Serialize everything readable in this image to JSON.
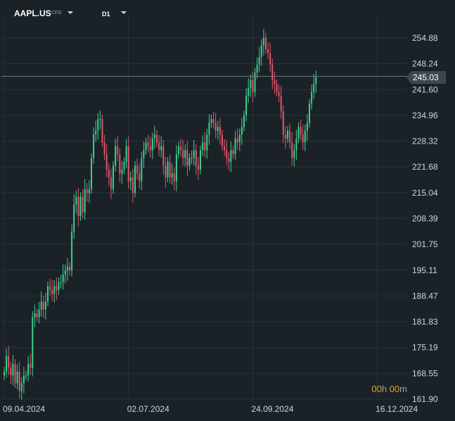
{
  "header": {
    "symbol": "AAPL.US",
    "instrument_type": "CFD",
    "timeframe": "D1"
  },
  "timer": {
    "hours": "00",
    "h_unit": "h",
    "minutes": "00",
    "m_unit": "m"
  },
  "current_price": "245.03",
  "colors": {
    "background": "#1a2228",
    "grid": "#27323a",
    "bull": "#3fcf8e",
    "bear": "#e0566b",
    "price_line": "#6b7880",
    "timer_accent": "#e3a33a"
  },
  "chart_data": {
    "type": "candlestick",
    "title": "",
    "xlabel": "",
    "ylabel": "",
    "timeframe": "D1",
    "ylim": [
      161.9,
      261.52
    ],
    "y_ticks": [
      "254.88",
      "248.24",
      "241.60",
      "234.96",
      "228.32",
      "221.68",
      "215.04",
      "208.39",
      "201.75",
      "195.11",
      "188.47",
      "181.83",
      "175.19",
      "168.55",
      "161.90"
    ],
    "x_ticks": [
      "09.04.2024",
      "02.07.2024",
      "24.09.2024",
      "16.12.2024"
    ],
    "x_tick_index": [
      0,
      57,
      114,
      171
    ],
    "current_price": 245.03,
    "grid": true,
    "close": [
      169,
      173,
      170,
      168,
      171,
      166,
      169,
      164,
      166,
      168,
      168,
      171,
      170,
      183,
      184,
      183,
      185,
      187,
      185,
      187,
      191,
      190,
      189,
      191,
      190,
      192,
      192,
      194,
      195,
      196,
      195,
      205,
      212,
      214,
      209,
      214,
      210,
      216,
      215,
      216,
      224,
      230,
      231,
      234,
      234,
      228,
      225,
      221,
      219,
      216,
      222,
      227,
      225,
      220,
      221,
      223,
      227,
      218,
      219,
      215,
      222,
      220,
      218,
      224,
      226,
      228,
      227,
      226,
      229,
      230,
      228,
      226,
      227,
      222,
      219,
      223,
      219,
      220,
      218,
      225,
      227,
      226,
      224,
      226,
      222,
      224,
      224,
      226,
      222,
      221,
      226,
      228,
      226,
      230,
      233,
      234,
      233,
      231,
      232,
      230,
      227,
      226,
      224,
      223,
      226,
      225,
      229,
      228,
      230,
      232,
      235,
      240,
      242,
      244,
      241,
      246,
      248,
      250,
      253,
      255,
      252,
      251,
      248,
      244,
      243,
      241,
      240,
      236,
      230,
      229,
      231,
      228,
      224,
      226,
      229,
      232,
      230,
      228,
      231,
      233,
      238,
      241,
      243,
      245
    ]
  }
}
